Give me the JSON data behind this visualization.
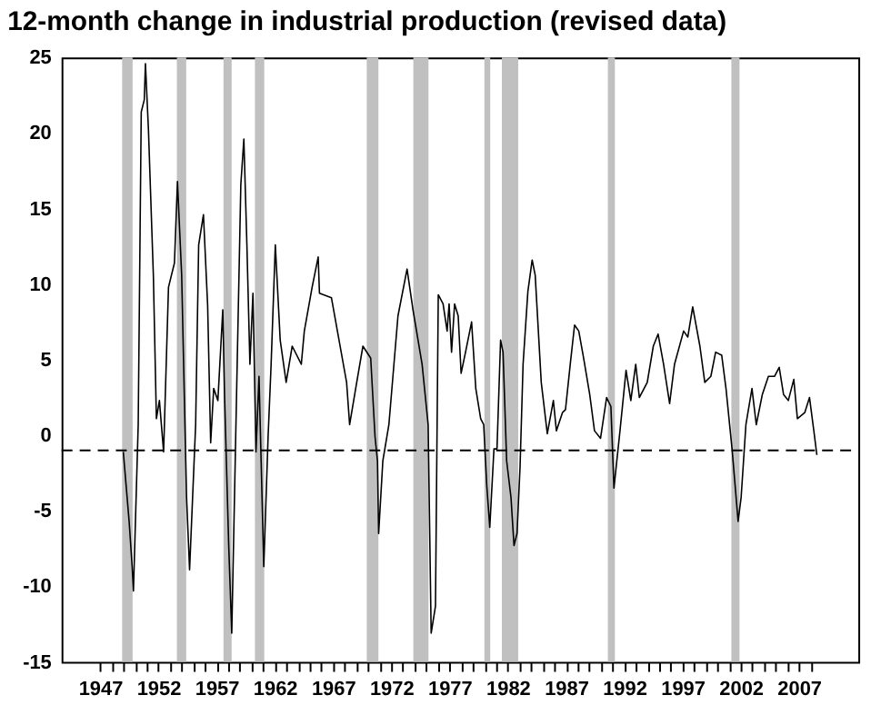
{
  "chart_data": {
    "type": "line",
    "title": "12-month change in industrial production (revised data)",
    "xlim": [
      1943.7,
      2012.1
    ],
    "ylim": [
      -15,
      25
    ],
    "yticks": [
      -15,
      -10,
      -5,
      0,
      5,
      10,
      15,
      20,
      25
    ],
    "xticks": [
      1947,
      {
        "value": 1948,
        "label": null
      },
      {
        "value": 1949,
        "label": null
      },
      {
        "value": 1950,
        "label": null
      },
      {
        "value": 1951,
        "label": null
      },
      1952,
      {
        "value": 1953,
        "label": null
      },
      {
        "value": 1954,
        "label": null
      },
      {
        "value": 1955,
        "label": null
      },
      {
        "value": 1956,
        "label": null
      },
      1957,
      {
        "value": 1958,
        "label": null
      },
      {
        "value": 1959,
        "label": null
      },
      {
        "value": 1960,
        "label": null
      },
      {
        "value": 1961,
        "label": null
      },
      1962,
      {
        "value": 1963,
        "label": null
      },
      {
        "value": 1964,
        "label": null
      },
      {
        "value": 1965,
        "label": null
      },
      {
        "value": 1966,
        "label": null
      },
      1967,
      {
        "value": 1968,
        "label": null
      },
      {
        "value": 1969,
        "label": null
      },
      {
        "value": 1970,
        "label": null
      },
      {
        "value": 1971,
        "label": null
      },
      1972,
      {
        "value": 1973,
        "label": null
      },
      {
        "value": 1974,
        "label": null
      },
      {
        "value": 1975,
        "label": null
      },
      {
        "value": 1976,
        "label": null
      },
      1977,
      {
        "value": 1978,
        "label": null
      },
      {
        "value": 1979,
        "label": null
      },
      {
        "value": 1980,
        "label": null
      },
      {
        "value": 1981,
        "label": null
      },
      1982,
      {
        "value": 1983,
        "label": null
      },
      {
        "value": 1984,
        "label": null
      },
      {
        "value": 1985,
        "label": null
      },
      {
        "value": 1986,
        "label": null
      },
      1987,
      {
        "value": 1988,
        "label": null
      },
      {
        "value": 1989,
        "label": null
      },
      {
        "value": 1990,
        "label": null
      },
      {
        "value": 1991,
        "label": null
      },
      1992,
      {
        "value": 1993,
        "label": null
      },
      {
        "value": 1994,
        "label": null
      },
      {
        "value": 1995,
        "label": null
      },
      {
        "value": 1996,
        "label": null
      },
      1997,
      {
        "value": 1998,
        "label": null
      },
      {
        "value": 1999,
        "label": null
      },
      {
        "value": 2000,
        "label": null
      },
      {
        "value": 2001,
        "label": null
      },
      2002,
      {
        "value": 2003,
        "label": null
      },
      {
        "value": 2004,
        "label": null
      },
      {
        "value": 2005,
        "label": null
      },
      {
        "value": 2006,
        "label": null
      },
      2007,
      {
        "value": 2008,
        "label": null
      }
    ],
    "grid": false,
    "line_style": "solid",
    "marker": "none",
    "series": [
      {
        "color": "#000000",
        "x": [
          1949.0,
          1949.5,
          1949.76,
          1949.87,
          1950.28,
          1950.54,
          1950.8,
          1950.9,
          1951.16,
          1951.58,
          1951.84,
          1952.1,
          1952.46,
          1952.88,
          1953.39,
          1953.65,
          1954.01,
          1954.43,
          1954.69,
          1955.21,
          1955.47,
          1955.88,
          1956.24,
          1956.5,
          1956.76,
          1957.12,
          1957.54,
          1957.69,
          1958.05,
          1958.31,
          1958.67,
          1959.09,
          1959.35,
          1959.61,
          1959.87,
          1960.13,
          1960.39,
          1960.65,
          1961.06,
          1961.43,
          1961.69,
          1962.05,
          1962.47,
          1962.98,
          1963.5,
          1964.28,
          1964.54,
          1965.21,
          1965.73,
          1965.84,
          1966.87,
          1968.17,
          1968.43,
          1968.95,
          1969.57,
          1970.24,
          1970.61,
          1970.82,
          1970.92,
          1971.28,
          1971.8,
          1972.58,
          1973.36,
          1973.87,
          1974.65,
          1975.17,
          1975.43,
          1975.8,
          1976.04,
          1976.45,
          1976.8,
          1976.97,
          1977.18,
          1977.44,
          1977.75,
          1978.0,
          1978.38,
          1978.9,
          1979.26,
          1979.68,
          1979.94,
          1980.2,
          1980.46,
          1980.82,
          1981.08,
          1981.39,
          1981.6,
          1981.91,
          1982.28,
          1982.54,
          1982.8,
          1983.06,
          1983.32,
          1983.73,
          1984.1,
          1984.36,
          1984.88,
          1985.4,
          1985.92,
          1986.18,
          1986.7,
          1986.96,
          1987.37,
          1987.74,
          1988.1,
          1988.52,
          1989.04,
          1989.45,
          1989.97,
          1990.49,
          1990.86,
          1991.12,
          1991.64,
          1992.16,
          1992.57,
          1992.99,
          1993.3,
          1993.98,
          1994.5,
          1994.91,
          1995.38,
          1995.9,
          1996.32,
          1997.1,
          1997.46,
          1997.88,
          1998.5,
          1998.92,
          1999.44,
          1999.85,
          2000.37,
          2000.74,
          2001.26,
          2001.78,
          2002.04,
          2002.45,
          2002.97,
          2003.34,
          2003.86,
          2004.38,
          2004.9,
          2005.31,
          2005.68,
          2006.09,
          2006.56,
          2006.87,
          2007.5,
          2007.91,
          2008.28,
          2008.54
        ],
        "values": [
          -1.1,
          -5.7,
          -8.7,
          -10.3,
          0.7,
          21.4,
          22.2,
          24.6,
          20.2,
          10.6,
          1.1,
          2.3,
          -1.1,
          9.8,
          11.4,
          16.8,
          10.6,
          -4.1,
          -8.9,
          0.7,
          12.6,
          14.6,
          8.6,
          -0.5,
          3.1,
          2.3,
          8.3,
          2.7,
          -7.3,
          -13.1,
          0.7,
          16.6,
          19.6,
          12.6,
          4.7,
          9.4,
          -1.1,
          3.9,
          -8.7,
          -0.1,
          4.7,
          12.6,
          6.3,
          3.5,
          5.9,
          4.7,
          6.9,
          9.8,
          11.8,
          9.4,
          9.1,
          3.5,
          0.7,
          3.1,
          5.9,
          5.1,
          -0.1,
          -1.7,
          -6.5,
          -1.7,
          0.7,
          7.9,
          11.0,
          8.3,
          4.7,
          0.7,
          -13.1,
          -11.3,
          9.3,
          8.7,
          6.9,
          8.7,
          5.5,
          8.7,
          7.9,
          4.1,
          5.5,
          7.5,
          3.1,
          1.1,
          0.7,
          -3.3,
          -6.1,
          -0.9,
          -0.9,
          6.3,
          5.5,
          -1.7,
          -4.1,
          -7.3,
          -6.5,
          -2.1,
          4.7,
          9.5,
          11.6,
          10.6,
          3.5,
          0.1,
          2.3,
          0.3,
          1.5,
          1.7,
          4.7,
          7.3,
          6.9,
          5.1,
          2.7,
          0.3,
          -0.2,
          2.5,
          1.9,
          -3.5,
          0.3,
          4.3,
          2.3,
          4.7,
          2.5,
          3.5,
          5.9,
          6.7,
          4.7,
          2.1,
          4.7,
          6.9,
          6.5,
          8.5,
          5.9,
          3.5,
          3.9,
          5.5,
          5.3,
          3.1,
          -0.9,
          -5.7,
          -4.1,
          0.7,
          3.1,
          0.7,
          2.7,
          3.9,
          3.9,
          4.5,
          2.7,
          2.3,
          3.7,
          1.1,
          1.5,
          2.5,
          0.3,
          -1.3
        ]
      }
    ],
    "bands": [
      {
        "axis": "x",
        "from": 1948.9,
        "to": 1949.8,
        "color": "#c0c0c0"
      },
      {
        "axis": "x",
        "from": 1953.6,
        "to": 1954.4,
        "color": "#c0c0c0"
      },
      {
        "axis": "x",
        "from": 1957.6,
        "to": 1958.3,
        "color": "#c0c0c0"
      },
      {
        "axis": "x",
        "from": 1960.3,
        "to": 1961.1,
        "color": "#c0c0c0"
      },
      {
        "axis": "x",
        "from": 1969.9,
        "to": 1970.9,
        "color": "#c0c0c0"
      },
      {
        "axis": "x",
        "from": 1973.9,
        "to": 1975.2,
        "color": "#c0c0c0"
      },
      {
        "axis": "x",
        "from": 1980.0,
        "to": 1980.5,
        "color": "#c0c0c0"
      },
      {
        "axis": "x",
        "from": 1981.5,
        "to": 1982.9,
        "color": "#c0c0c0"
      },
      {
        "axis": "x",
        "from": 1990.6,
        "to": 1991.2,
        "color": "#c0c0c0"
      },
      {
        "axis": "x",
        "from": 2001.2,
        "to": 2001.9,
        "color": "#c0c0c0"
      }
    ],
    "ref_lines": [
      {
        "axis": "y",
        "value": -1,
        "color": "#000000",
        "line_style": "dashed"
      }
    ]
  }
}
